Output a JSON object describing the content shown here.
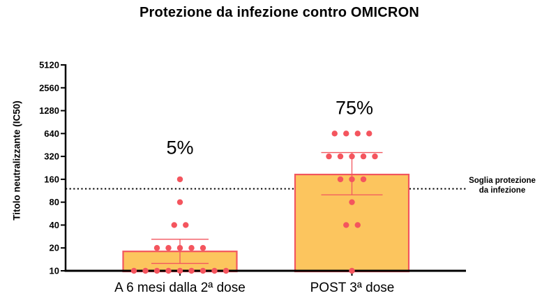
{
  "title": "Protezione da infezione contro OMICRON",
  "colors": {
    "bar_fill": "#FCC55E",
    "bar_border": "#F2565E",
    "dot": "#F4555E",
    "error_bar": "#F2565E",
    "axis": "#000000",
    "threshold_line": "#000000"
  },
  "chart_data": {
    "type": "bar",
    "scale": "log2",
    "title": "Protezione da infezione contro OMICRON",
    "ylabel": "Titolo neutralizzante (IC50)",
    "xlabel": "",
    "ylim": [
      10,
      5120
    ],
    "yticks": [
      10,
      20,
      40,
      80,
      160,
      320,
      640,
      1280,
      2560,
      5120
    ],
    "grid": false,
    "threshold": {
      "value": 120,
      "label_lines": [
        "Soglia protezione",
        "da infezione"
      ]
    },
    "groups": [
      {
        "label": "A 6 mesi dalla 2ª dose",
        "annotation": "5%",
        "bar_value": 18,
        "error_upper": 26,
        "error_lower": 12.5,
        "points": [
          160,
          80,
          40,
          40,
          20,
          20,
          20,
          20,
          20,
          10,
          10,
          10,
          10,
          10,
          10,
          10,
          10,
          10
        ]
      },
      {
        "label": "POST 3ª dose",
        "annotation": "75%",
        "bar_value": 185,
        "error_upper": 360,
        "error_lower": 100,
        "points": [
          640,
          640,
          640,
          640,
          320,
          320,
          320,
          320,
          320,
          160,
          160,
          160,
          80,
          40,
          40,
          10
        ]
      }
    ]
  }
}
